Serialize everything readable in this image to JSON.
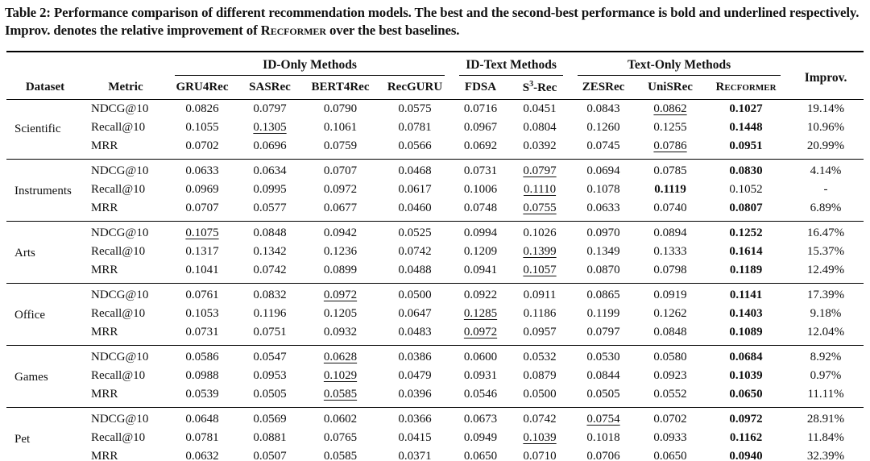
{
  "colors": {
    "text": "#111111",
    "background": "#ffffff",
    "rule": "#000000"
  },
  "caption": {
    "part1": "Table 2: Performance comparison of different recommendation models. The best and the second-best performance is bold and underlined respectively. Improv. denotes the relative improvement of ",
    "recformer": "Recformer",
    "part2": " over the best baselines."
  },
  "table": {
    "header": {
      "dataset": "Dataset",
      "metric": "Metric",
      "group1": {
        "label": "ID-Only Methods",
        "m1": "GRU4Rec",
        "m2": "SASRec",
        "m3": "BERT4Rec",
        "m4": "RecGURU"
      },
      "group2": {
        "label": "ID-Text Methods",
        "m1": "FDSA",
        "m2_pre": "S",
        "m2_sup": "3",
        "m2_post": "-Rec"
      },
      "group3": {
        "label": "Text-Only Methods",
        "m1": "ZESRec",
        "m2": "UniSRec",
        "m3": "Recformer"
      },
      "improv": "Improv."
    },
    "body": [
      {
        "dataset": "Scientific",
        "rows": [
          {
            "metric": "NDCG@10",
            "cells": [
              {
                "v": "0.0826"
              },
              {
                "v": "0.0797"
              },
              {
                "v": "0.0790"
              },
              {
                "v": "0.0575"
              },
              {
                "v": "0.0716"
              },
              {
                "v": "0.0451"
              },
              {
                "v": "0.0843"
              },
              {
                "v": "0.0862",
                "s": "u"
              },
              {
                "v": "0.1027",
                "s": "b"
              }
            ],
            "improv": "19.14%"
          },
          {
            "metric": "Recall@10",
            "cells": [
              {
                "v": "0.1055"
              },
              {
                "v": "0.1305",
                "s": "u"
              },
              {
                "v": "0.1061"
              },
              {
                "v": "0.0781"
              },
              {
                "v": "0.0967"
              },
              {
                "v": "0.0804"
              },
              {
                "v": "0.1260"
              },
              {
                "v": "0.1255"
              },
              {
                "v": "0.1448",
                "s": "b"
              }
            ],
            "improv": "10.96%"
          },
          {
            "metric": "MRR",
            "cells": [
              {
                "v": "0.0702"
              },
              {
                "v": "0.0696"
              },
              {
                "v": "0.0759"
              },
              {
                "v": "0.0566"
              },
              {
                "v": "0.0692"
              },
              {
                "v": "0.0392"
              },
              {
                "v": "0.0745"
              },
              {
                "v": "0.0786",
                "s": "u"
              },
              {
                "v": "0.0951",
                "s": "b"
              }
            ],
            "improv": "20.99%"
          }
        ]
      },
      {
        "dataset": "Instruments",
        "rows": [
          {
            "metric": "NDCG@10",
            "cells": [
              {
                "v": "0.0633"
              },
              {
                "v": "0.0634"
              },
              {
                "v": "0.0707"
              },
              {
                "v": "0.0468"
              },
              {
                "v": "0.0731"
              },
              {
                "v": "0.0797",
                "s": "u"
              },
              {
                "v": "0.0694"
              },
              {
                "v": "0.0785"
              },
              {
                "v": "0.0830",
                "s": "b"
              }
            ],
            "improv": "4.14%"
          },
          {
            "metric": "Recall@10",
            "cells": [
              {
                "v": "0.0969"
              },
              {
                "v": "0.0995"
              },
              {
                "v": "0.0972"
              },
              {
                "v": "0.0617"
              },
              {
                "v": "0.1006"
              },
              {
                "v": "0.1110",
                "s": "u"
              },
              {
                "v": "0.1078"
              },
              {
                "v": "0.1119",
                "s": "b"
              },
              {
                "v": "0.1052"
              }
            ],
            "improv": "-"
          },
          {
            "metric": "MRR",
            "cells": [
              {
                "v": "0.0707"
              },
              {
                "v": "0.0577"
              },
              {
                "v": "0.0677"
              },
              {
                "v": "0.0460"
              },
              {
                "v": "0.0748"
              },
              {
                "v": "0.0755",
                "s": "u"
              },
              {
                "v": "0.0633"
              },
              {
                "v": "0.0740"
              },
              {
                "v": "0.0807",
                "s": "b"
              }
            ],
            "improv": "6.89%"
          }
        ]
      },
      {
        "dataset": "Arts",
        "rows": [
          {
            "metric": "NDCG@10",
            "cells": [
              {
                "v": "0.1075",
                "s": "u"
              },
              {
                "v": "0.0848"
              },
              {
                "v": "0.0942"
              },
              {
                "v": "0.0525"
              },
              {
                "v": "0.0994"
              },
              {
                "v": "0.1026"
              },
              {
                "v": "0.0970"
              },
              {
                "v": "0.0894"
              },
              {
                "v": "0.1252",
                "s": "b"
              }
            ],
            "improv": "16.47%"
          },
          {
            "metric": "Recall@10",
            "cells": [
              {
                "v": "0.1317"
              },
              {
                "v": "0.1342"
              },
              {
                "v": "0.1236"
              },
              {
                "v": "0.0742"
              },
              {
                "v": "0.1209"
              },
              {
                "v": "0.1399",
                "s": "u"
              },
              {
                "v": "0.1349"
              },
              {
                "v": "0.1333"
              },
              {
                "v": "0.1614",
                "s": "b"
              }
            ],
            "improv": "15.37%"
          },
          {
            "metric": "MRR",
            "cells": [
              {
                "v": "0.1041"
              },
              {
                "v": "0.0742"
              },
              {
                "v": "0.0899"
              },
              {
                "v": "0.0488"
              },
              {
                "v": "0.0941"
              },
              {
                "v": "0.1057",
                "s": "u"
              },
              {
                "v": "0.0870"
              },
              {
                "v": "0.0798"
              },
              {
                "v": "0.1189",
                "s": "b"
              }
            ],
            "improv": "12.49%"
          }
        ]
      },
      {
        "dataset": "Office",
        "rows": [
          {
            "metric": "NDCG@10",
            "cells": [
              {
                "v": "0.0761"
              },
              {
                "v": "0.0832"
              },
              {
                "v": "0.0972",
                "s": "u"
              },
              {
                "v": "0.0500"
              },
              {
                "v": "0.0922"
              },
              {
                "v": "0.0911"
              },
              {
                "v": "0.0865"
              },
              {
                "v": "0.0919"
              },
              {
                "v": "0.1141",
                "s": "b"
              }
            ],
            "improv": "17.39%"
          },
          {
            "metric": "Recall@10",
            "cells": [
              {
                "v": "0.1053"
              },
              {
                "v": "0.1196"
              },
              {
                "v": "0.1205"
              },
              {
                "v": "0.0647"
              },
              {
                "v": "0.1285",
                "s": "u"
              },
              {
                "v": "0.1186"
              },
              {
                "v": "0.1199"
              },
              {
                "v": "0.1262"
              },
              {
                "v": "0.1403",
                "s": "b"
              }
            ],
            "improv": "9.18%"
          },
          {
            "metric": "MRR",
            "cells": [
              {
                "v": "0.0731"
              },
              {
                "v": "0.0751"
              },
              {
                "v": "0.0932"
              },
              {
                "v": "0.0483"
              },
              {
                "v": "0.0972",
                "s": "u"
              },
              {
                "v": "0.0957"
              },
              {
                "v": "0.0797"
              },
              {
                "v": "0.0848"
              },
              {
                "v": "0.1089",
                "s": "b"
              }
            ],
            "improv": "12.04%"
          }
        ]
      },
      {
        "dataset": "Games",
        "rows": [
          {
            "metric": "NDCG@10",
            "cells": [
              {
                "v": "0.0586"
              },
              {
                "v": "0.0547"
              },
              {
                "v": "0.0628",
                "s": "u"
              },
              {
                "v": "0.0386"
              },
              {
                "v": "0.0600"
              },
              {
                "v": "0.0532"
              },
              {
                "v": "0.0530"
              },
              {
                "v": "0.0580"
              },
              {
                "v": "0.0684",
                "s": "b"
              }
            ],
            "improv": "8.92%"
          },
          {
            "metric": "Recall@10",
            "cells": [
              {
                "v": "0.0988"
              },
              {
                "v": "0.0953"
              },
              {
                "v": "0.1029",
                "s": "u"
              },
              {
                "v": "0.0479"
              },
              {
                "v": "0.0931"
              },
              {
                "v": "0.0879"
              },
              {
                "v": "0.0844"
              },
              {
                "v": "0.0923"
              },
              {
                "v": "0.1039",
                "s": "b"
              }
            ],
            "improv": "0.97%"
          },
          {
            "metric": "MRR",
            "cells": [
              {
                "v": "0.0539"
              },
              {
                "v": "0.0505"
              },
              {
                "v": "0.0585",
                "s": "u"
              },
              {
                "v": "0.0396"
              },
              {
                "v": "0.0546"
              },
              {
                "v": "0.0500"
              },
              {
                "v": "0.0505"
              },
              {
                "v": "0.0552"
              },
              {
                "v": "0.0650",
                "s": "b"
              }
            ],
            "improv": "11.11%"
          }
        ]
      },
      {
        "dataset": "Pet",
        "rows": [
          {
            "metric": "NDCG@10",
            "cells": [
              {
                "v": "0.0648"
              },
              {
                "v": "0.0569"
              },
              {
                "v": "0.0602"
              },
              {
                "v": "0.0366"
              },
              {
                "v": "0.0673"
              },
              {
                "v": "0.0742"
              },
              {
                "v": "0.0754",
                "s": "u"
              },
              {
                "v": "0.0702"
              },
              {
                "v": "0.0972",
                "s": "b"
              }
            ],
            "improv": "28.91%"
          },
          {
            "metric": "Recall@10",
            "cells": [
              {
                "v": "0.0781"
              },
              {
                "v": "0.0881"
              },
              {
                "v": "0.0765"
              },
              {
                "v": "0.0415"
              },
              {
                "v": "0.0949"
              },
              {
                "v": "0.1039",
                "s": "u"
              },
              {
                "v": "0.1018"
              },
              {
                "v": "0.0933"
              },
              {
                "v": "0.1162",
                "s": "b"
              }
            ],
            "improv": "11.84%"
          },
          {
            "metric": "MRR",
            "cells": [
              {
                "v": "0.0632"
              },
              {
                "v": "0.0507"
              },
              {
                "v": "0.0585"
              },
              {
                "v": "0.0371"
              },
              {
                "v": "0.0650"
              },
              {
                "v": "0.0710",
                "s": "u"
              },
              {
                "v": "0.0706"
              },
              {
                "v": "0.0650"
              },
              {
                "v": "0.0940",
                "s": "b"
              }
            ],
            "improv": "32.39%"
          }
        ]
      }
    ]
  }
}
